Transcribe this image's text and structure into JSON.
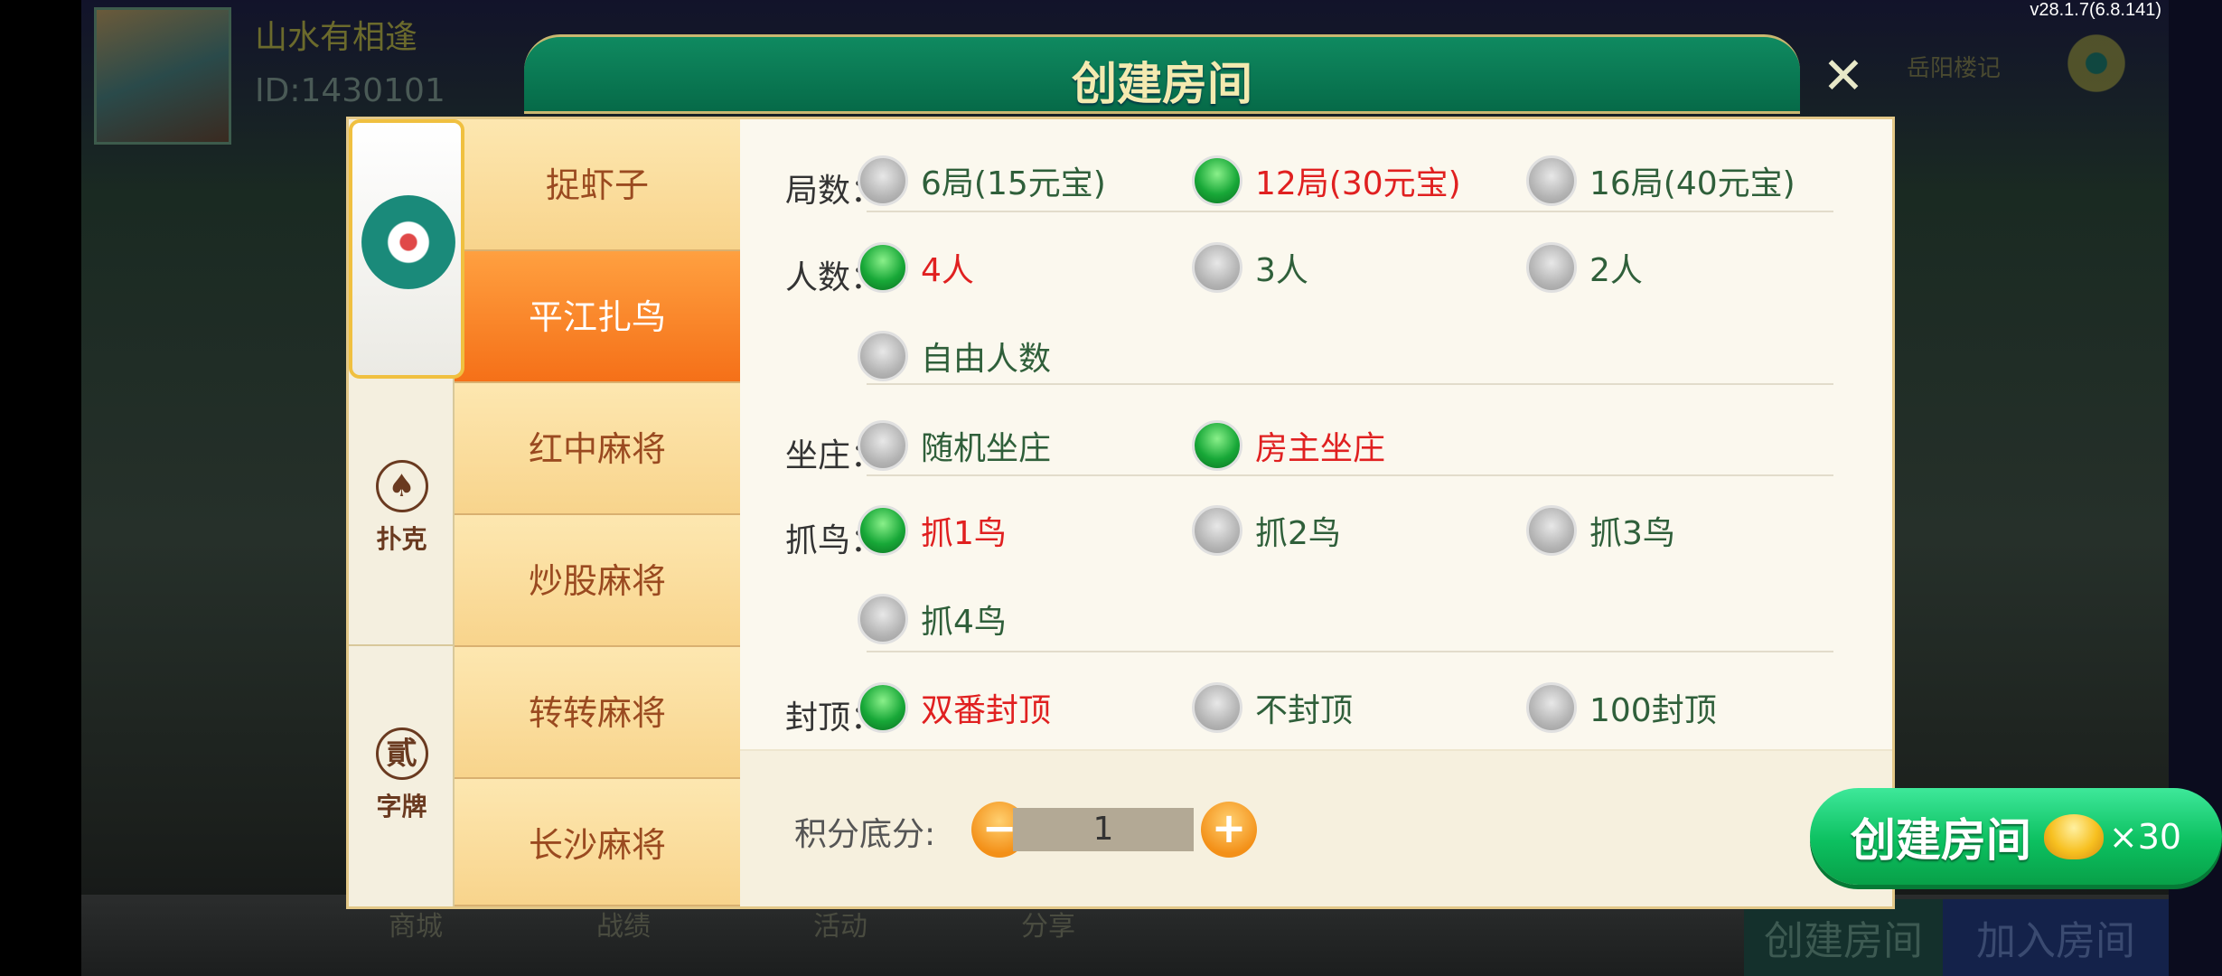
{
  "background": {
    "user_name": "山水有相逢",
    "user_id": "ID:1430101",
    "version": "v28.1.7(6.8.141)",
    "location": "岳阳楼记",
    "bottom_items": [
      "商城",
      "战绩",
      "活动",
      "分享"
    ],
    "create_room": "创建房间",
    "join_room": "加入房间"
  },
  "dialog": {
    "title": "创建房间",
    "close_icon": "close-icon",
    "categories": [
      {
        "label": "",
        "icon": "mahjong-logo-icon"
      },
      {
        "label": "扑克",
        "icon": "spade-icon",
        "glyph": "♠"
      },
      {
        "label": "字牌",
        "icon": "er-character-icon",
        "glyph": "貳"
      }
    ],
    "games": [
      "捉虾子",
      "平江扎鸟",
      "红中麻将",
      "炒股麻将",
      "转转麻将",
      "长沙麻将"
    ],
    "selected_game": "平江扎鸟",
    "rows": [
      {
        "label": "局数：",
        "options": [
          {
            "text": "6局(15元宝)",
            "selected": false
          },
          {
            "text": "12局(30元宝)",
            "selected": true
          },
          {
            "text": "16局(40元宝)",
            "selected": false
          }
        ]
      },
      {
        "label": "人数：",
        "options": [
          {
            "text": "4人",
            "selected": true
          },
          {
            "text": "3人",
            "selected": false
          },
          {
            "text": "2人",
            "selected": false
          },
          {
            "text": "自由人数",
            "selected": false
          }
        ]
      },
      {
        "label": "坐庄：",
        "options": [
          {
            "text": "随机坐庄",
            "selected": false
          },
          {
            "text": "房主坐庄",
            "selected": true
          }
        ]
      },
      {
        "label": "抓鸟：",
        "options": [
          {
            "text": "抓1鸟",
            "selected": true
          },
          {
            "text": "抓2鸟",
            "selected": false
          },
          {
            "text": "抓3鸟",
            "selected": false
          },
          {
            "text": "抓4鸟",
            "selected": false
          }
        ]
      },
      {
        "label": "封顶：",
        "options": [
          {
            "text": "双番封顶",
            "selected": true
          },
          {
            "text": "不封顶",
            "selected": false
          },
          {
            "text": "100封顶",
            "selected": false
          }
        ]
      }
    ],
    "score": {
      "label": "积分底分:",
      "value": "1",
      "minus": "−",
      "plus": "+"
    },
    "create_button": {
      "label": "创建房间",
      "cost": "×30",
      "icon": "gold-ingot-icon"
    }
  },
  "colors": {
    "accent_green": "#0cc060",
    "selected_text": "#e02020",
    "active_tab": "#f57018",
    "header": "#066a48"
  }
}
